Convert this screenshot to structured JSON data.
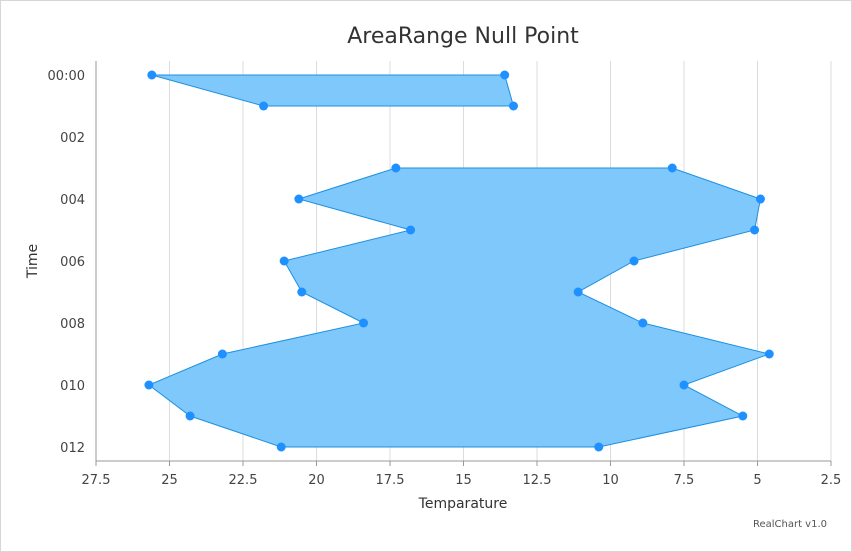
{
  "chart_data": {
    "type": "area",
    "subtype": "arearange",
    "title": "AreaRange Null Point",
    "xlabel": "Temparature",
    "ylabel": "Time",
    "orientation": "inverted",
    "value_axis_reversed": true,
    "credit": "RealChart v1.0",
    "category_tick_labels": [
      "00:00",
      "002",
      "004",
      "006",
      "008",
      "010",
      "012"
    ],
    "value_tick_labels": [
      "27.5",
      "25",
      "22.5",
      "20",
      "17.5",
      "15",
      "12.5",
      "10",
      "7.5",
      "5",
      "2.5"
    ],
    "value_range": [
      27.5,
      2.5
    ],
    "grid": true,
    "colors": {
      "fill": "#7fc8fb",
      "stroke": "#1e90e0",
      "point": "#1e90ff"
    },
    "segments": [
      [
        {
          "x": 0,
          "low": 13.6,
          "high": 25.6
        },
        {
          "x": 1,
          "low": 13.3,
          "high": 21.8
        }
      ],
      [
        {
          "x": 3,
          "low": 7.9,
          "high": 17.3
        },
        {
          "x": 4,
          "low": 4.9,
          "high": 20.6
        },
        {
          "x": 5,
          "low": 5.1,
          "high": 16.8
        },
        {
          "x": 6,
          "low": 9.2,
          "high": 21.1
        },
        {
          "x": 7,
          "low": 11.1,
          "high": 20.5
        },
        {
          "x": 8,
          "low": 8.9,
          "high": 18.4
        },
        {
          "x": 9,
          "low": 4.6,
          "high": 23.2
        },
        {
          "x": 10,
          "low": 7.5,
          "high": 25.7
        },
        {
          "x": 11,
          "low": 5.5,
          "high": 24.3
        },
        {
          "x": 12,
          "low": 10.4,
          "high": 21.2
        }
      ]
    ]
  }
}
